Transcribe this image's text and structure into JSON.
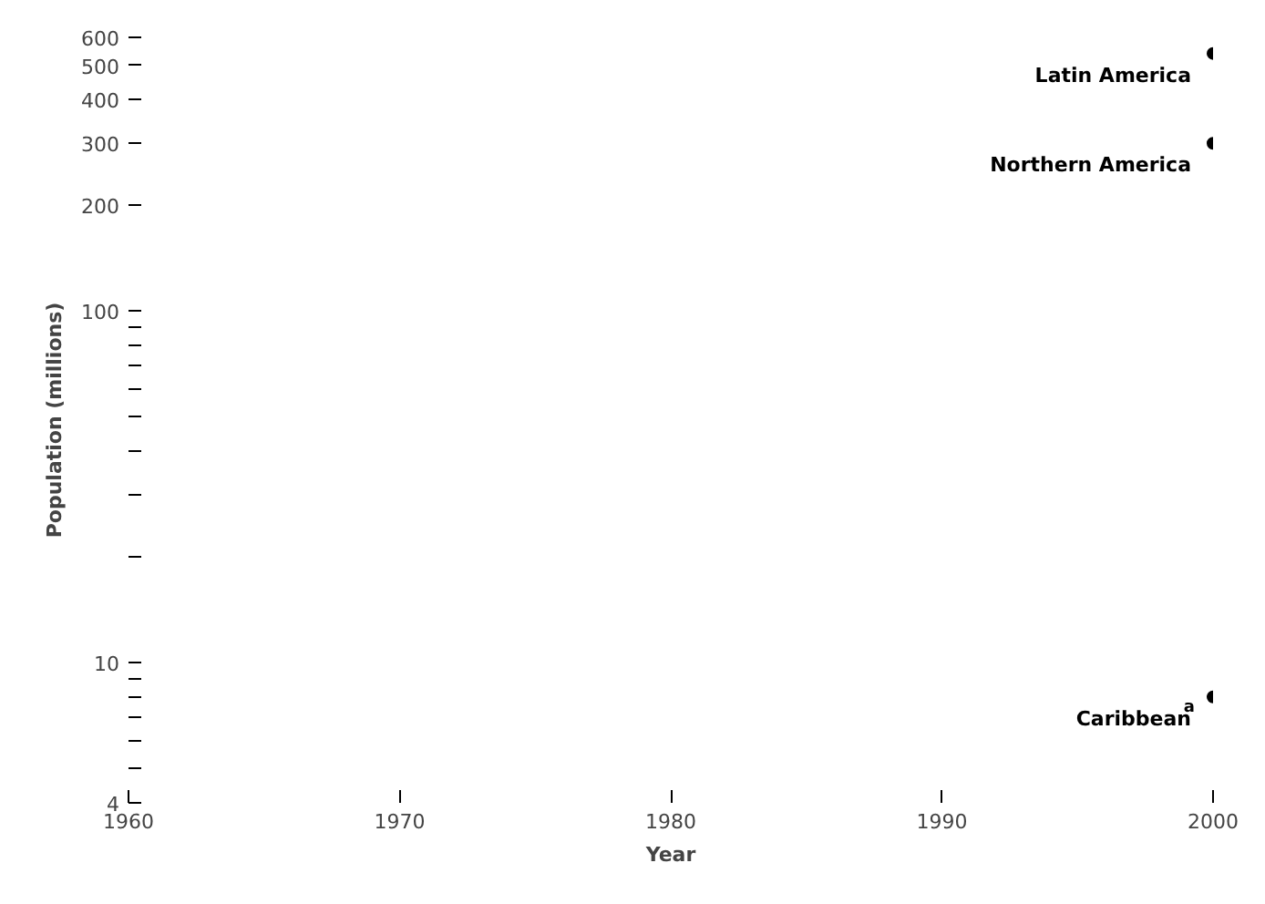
{
  "chart_data": {
    "type": "line",
    "xlabel": "Year",
    "ylabel": "Population (millions)",
    "log": "y",
    "marker": "circle",
    "grid": false,
    "legend": false,
    "x": [
      2000
    ],
    "series": [
      {
        "name": "Latin America",
        "color": "#000000",
        "values": [
          540
        ]
      },
      {
        "name": "Northern America",
        "color": "#000000",
        "values": [
          300
        ]
      },
      {
        "name": "Caribbean$^{a}$",
        "color": "#000000",
        "values": [
          8
        ]
      }
    ],
    "xlim": [
      1960,
      2000
    ],
    "xticks": [
      1960,
      1970,
      1980,
      1990,
      2000
    ],
    "ylim": [
      4,
      600
    ],
    "yticks": [
      4,
      {
        "value": 5,
        "label": null
      },
      {
        "value": 6,
        "label": null
      },
      {
        "value": 7,
        "label": null
      },
      {
        "value": 8,
        "label": null
      },
      {
        "value": 9,
        "label": null
      },
      10,
      {
        "value": 20,
        "label": null
      },
      {
        "value": 30,
        "label": null
      },
      {
        "value": 40,
        "label": null
      },
      {
        "value": 50,
        "label": null
      },
      {
        "value": 60,
        "label": null
      },
      {
        "value": 70,
        "label": null
      },
      {
        "value": 80,
        "label": null
      },
      {
        "value": 90,
        "label": null
      },
      100,
      200,
      300,
      400,
      500,
      600
    ]
  }
}
